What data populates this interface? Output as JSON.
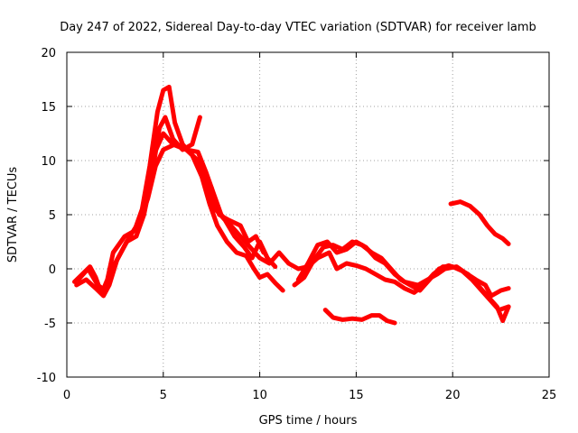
{
  "chart_data": {
    "type": "line",
    "title": "Day 247 of 2022, Sidereal Day-to-day VTEC variation (SDTVAR) for receiver lamb",
    "xlabel": "GPS time / hours",
    "ylabel": "SDTVAR / TECUs",
    "xlim": [
      0,
      25
    ],
    "ylim": [
      -10,
      20
    ],
    "xticks": [
      0,
      5,
      10,
      15,
      20,
      25
    ],
    "yticks": [
      -10,
      -5,
      0,
      5,
      10,
      15,
      20
    ],
    "grid": true,
    "color": "#ff0000",
    "series": [
      {
        "name": "trace-1",
        "points": [
          [
            0.4,
            -1.2
          ],
          [
            0.8,
            -0.5
          ],
          [
            1.2,
            0.2
          ],
          [
            1.5,
            -0.8
          ],
          [
            1.8,
            -2.3
          ],
          [
            2.1,
            -1.0
          ],
          [
            2.4,
            1.5
          ],
          [
            3.0,
            3.0
          ],
          [
            3.5,
            3.5
          ],
          [
            3.9,
            5.5
          ],
          [
            4.3,
            9.5
          ],
          [
            4.7,
            14.5
          ],
          [
            5.0,
            16.5
          ],
          [
            5.3,
            16.8
          ],
          [
            5.6,
            13.5
          ],
          [
            6.0,
            11.5
          ],
          [
            6.5,
            10.5
          ],
          [
            7.0,
            8.5
          ],
          [
            7.4,
            6.0
          ],
          [
            7.8,
            4.0
          ],
          [
            8.3,
            2.5
          ],
          [
            8.8,
            1.5
          ],
          [
            9.3,
            1.2
          ],
          [
            9.7,
            0.0
          ],
          [
            10.0,
            -0.8
          ],
          [
            10.4,
            -0.5
          ],
          [
            10.8,
            -1.3
          ],
          [
            11.2,
            -2.0
          ]
        ]
      },
      {
        "name": "trace-2",
        "points": [
          [
            0.5,
            -1.5
          ],
          [
            1.0,
            -1.0
          ],
          [
            1.5,
            -1.8
          ],
          [
            1.9,
            -2.5
          ],
          [
            2.2,
            -1.5
          ],
          [
            2.6,
            0.8
          ],
          [
            3.1,
            2.5
          ],
          [
            3.6,
            3.0
          ],
          [
            4.0,
            5.0
          ],
          [
            4.4,
            8.5
          ],
          [
            4.8,
            13.0
          ],
          [
            5.1,
            14.0
          ],
          [
            5.5,
            12.0
          ],
          [
            6.0,
            11.0
          ],
          [
            6.5,
            11.5
          ],
          [
            6.9,
            14.0
          ]
        ]
      },
      {
        "name": "trace-3",
        "points": [
          [
            0.6,
            -1.0
          ],
          [
            1.1,
            0.0
          ],
          [
            1.6,
            -1.5
          ],
          [
            2.0,
            -2.0
          ],
          [
            2.5,
            0.5
          ],
          [
            3.2,
            2.8
          ],
          [
            3.8,
            4.5
          ],
          [
            4.2,
            6.5
          ],
          [
            4.6,
            9.5
          ],
          [
            5.0,
            11.0
          ],
          [
            5.6,
            11.5
          ],
          [
            6.2,
            11.0
          ],
          [
            6.8,
            10.8
          ],
          [
            7.2,
            9.0
          ],
          [
            7.6,
            7.0
          ],
          [
            8.0,
            5.0
          ],
          [
            8.5,
            4.0
          ],
          [
            9.0,
            3.0
          ],
          [
            9.5,
            2.0
          ],
          [
            10.0,
            1.0
          ],
          [
            10.5,
            0.5
          ],
          [
            11.0,
            1.5
          ],
          [
            11.5,
            0.5
          ]
        ]
      },
      {
        "name": "trace-4",
        "points": [
          [
            4.5,
            10.5
          ],
          [
            5.0,
            12.5
          ],
          [
            5.5,
            11.5
          ],
          [
            6.2,
            11.0
          ],
          [
            6.8,
            10.0
          ],
          [
            7.3,
            8.0
          ],
          [
            7.7,
            5.5
          ],
          [
            8.2,
            4.5
          ],
          [
            8.7,
            3.0
          ],
          [
            9.2,
            2.0
          ],
          [
            9.6,
            1.0
          ],
          [
            10.0,
            2.5
          ],
          [
            10.4,
            1.0
          ],
          [
            10.8,
            0.2
          ]
        ]
      },
      {
        "name": "trace-5",
        "points": [
          [
            7.5,
            7.5
          ],
          [
            7.9,
            5.0
          ],
          [
            8.4,
            4.5
          ],
          [
            9.0,
            4.0
          ],
          [
            9.4,
            2.5
          ],
          [
            9.8,
            3.0
          ],
          [
            10.2,
            1.5
          ]
        ]
      },
      {
        "name": "trace-6",
        "points": [
          [
            11.8,
            -1.5
          ],
          [
            12.3,
            -0.8
          ],
          [
            12.8,
            0.8
          ],
          [
            13.3,
            2.0
          ],
          [
            13.8,
            2.2
          ],
          [
            14.3,
            1.8
          ],
          [
            14.8,
            2.5
          ],
          [
            15.3,
            2.2
          ],
          [
            15.8,
            1.5
          ],
          [
            16.3,
            1.0
          ],
          [
            16.8,
            0.0
          ],
          [
            17.3,
            -1.0
          ],
          [
            17.8,
            -1.5
          ],
          [
            18.3,
            -2.0
          ],
          [
            18.8,
            -1.0
          ],
          [
            19.3,
            0.0
          ],
          [
            19.8,
            0.3
          ],
          [
            20.3,
            0.0
          ],
          [
            20.8,
            -0.5
          ],
          [
            21.3,
            -1.5
          ],
          [
            21.8,
            -2.5
          ],
          [
            22.3,
            -3.5
          ],
          [
            22.6,
            -4.8
          ],
          [
            22.9,
            -3.5
          ]
        ]
      },
      {
        "name": "trace-7",
        "points": [
          [
            11.5,
            0.5
          ],
          [
            12.0,
            0.0
          ],
          [
            12.5,
            0.2
          ],
          [
            13.0,
            1.0
          ],
          [
            13.6,
            1.5
          ],
          [
            14.0,
            0.0
          ],
          [
            14.5,
            0.5
          ],
          [
            15.0,
            0.3
          ],
          [
            15.5,
            0.0
          ],
          [
            16.0,
            -0.5
          ],
          [
            16.5,
            -1.0
          ],
          [
            17.0,
            -1.2
          ],
          [
            17.5,
            -1.8
          ],
          [
            18.0,
            -2.2
          ],
          [
            18.5,
            -1.5
          ],
          [
            19.0,
            -0.5
          ],
          [
            19.5,
            0.2
          ],
          [
            20.0,
            0.2
          ],
          [
            20.5,
            -0.2
          ],
          [
            21.0,
            -1.0
          ],
          [
            21.5,
            -2.0
          ],
          [
            22.0,
            -3.0
          ],
          [
            22.4,
            -3.8
          ],
          [
            22.9,
            -3.5
          ]
        ]
      },
      {
        "name": "trace-8",
        "points": [
          [
            12.0,
            -1.0
          ],
          [
            12.5,
            0.5
          ],
          [
            13.0,
            2.2
          ],
          [
            13.5,
            2.5
          ],
          [
            14.0,
            1.5
          ],
          [
            14.5,
            1.8
          ],
          [
            15.0,
            2.5
          ],
          [
            15.5,
            2.0
          ],
          [
            16.0,
            1.0
          ],
          [
            16.5,
            0.5
          ],
          [
            17.0,
            -0.5
          ],
          [
            17.5,
            -1.2
          ],
          [
            18.2,
            -1.5
          ],
          [
            18.7,
            -1.0
          ],
          [
            19.2,
            -0.5
          ],
          [
            19.6,
            0.0
          ],
          [
            20.2,
            0.2
          ],
          [
            20.6,
            -0.3
          ],
          [
            21.2,
            -1.0
          ],
          [
            21.7,
            -1.5
          ],
          [
            22.0,
            -2.5
          ],
          [
            22.5,
            -2.0
          ],
          [
            22.9,
            -1.8
          ]
        ]
      },
      {
        "name": "trace-9",
        "points": [
          [
            13.4,
            -3.8
          ],
          [
            13.8,
            -4.5
          ],
          [
            14.3,
            -4.7
          ],
          [
            14.8,
            -4.6
          ],
          [
            15.3,
            -4.7
          ],
          [
            15.8,
            -4.3
          ],
          [
            16.2,
            -4.3
          ],
          [
            16.6,
            -4.8
          ],
          [
            17.0,
            -5.0
          ]
        ]
      },
      {
        "name": "trace-10",
        "points": [
          [
            19.9,
            6.0
          ],
          [
            20.4,
            6.2
          ],
          [
            20.9,
            5.8
          ],
          [
            21.4,
            5.0
          ],
          [
            21.8,
            4.0
          ],
          [
            22.2,
            3.2
          ],
          [
            22.6,
            2.8
          ],
          [
            22.9,
            2.3
          ]
        ]
      }
    ]
  }
}
